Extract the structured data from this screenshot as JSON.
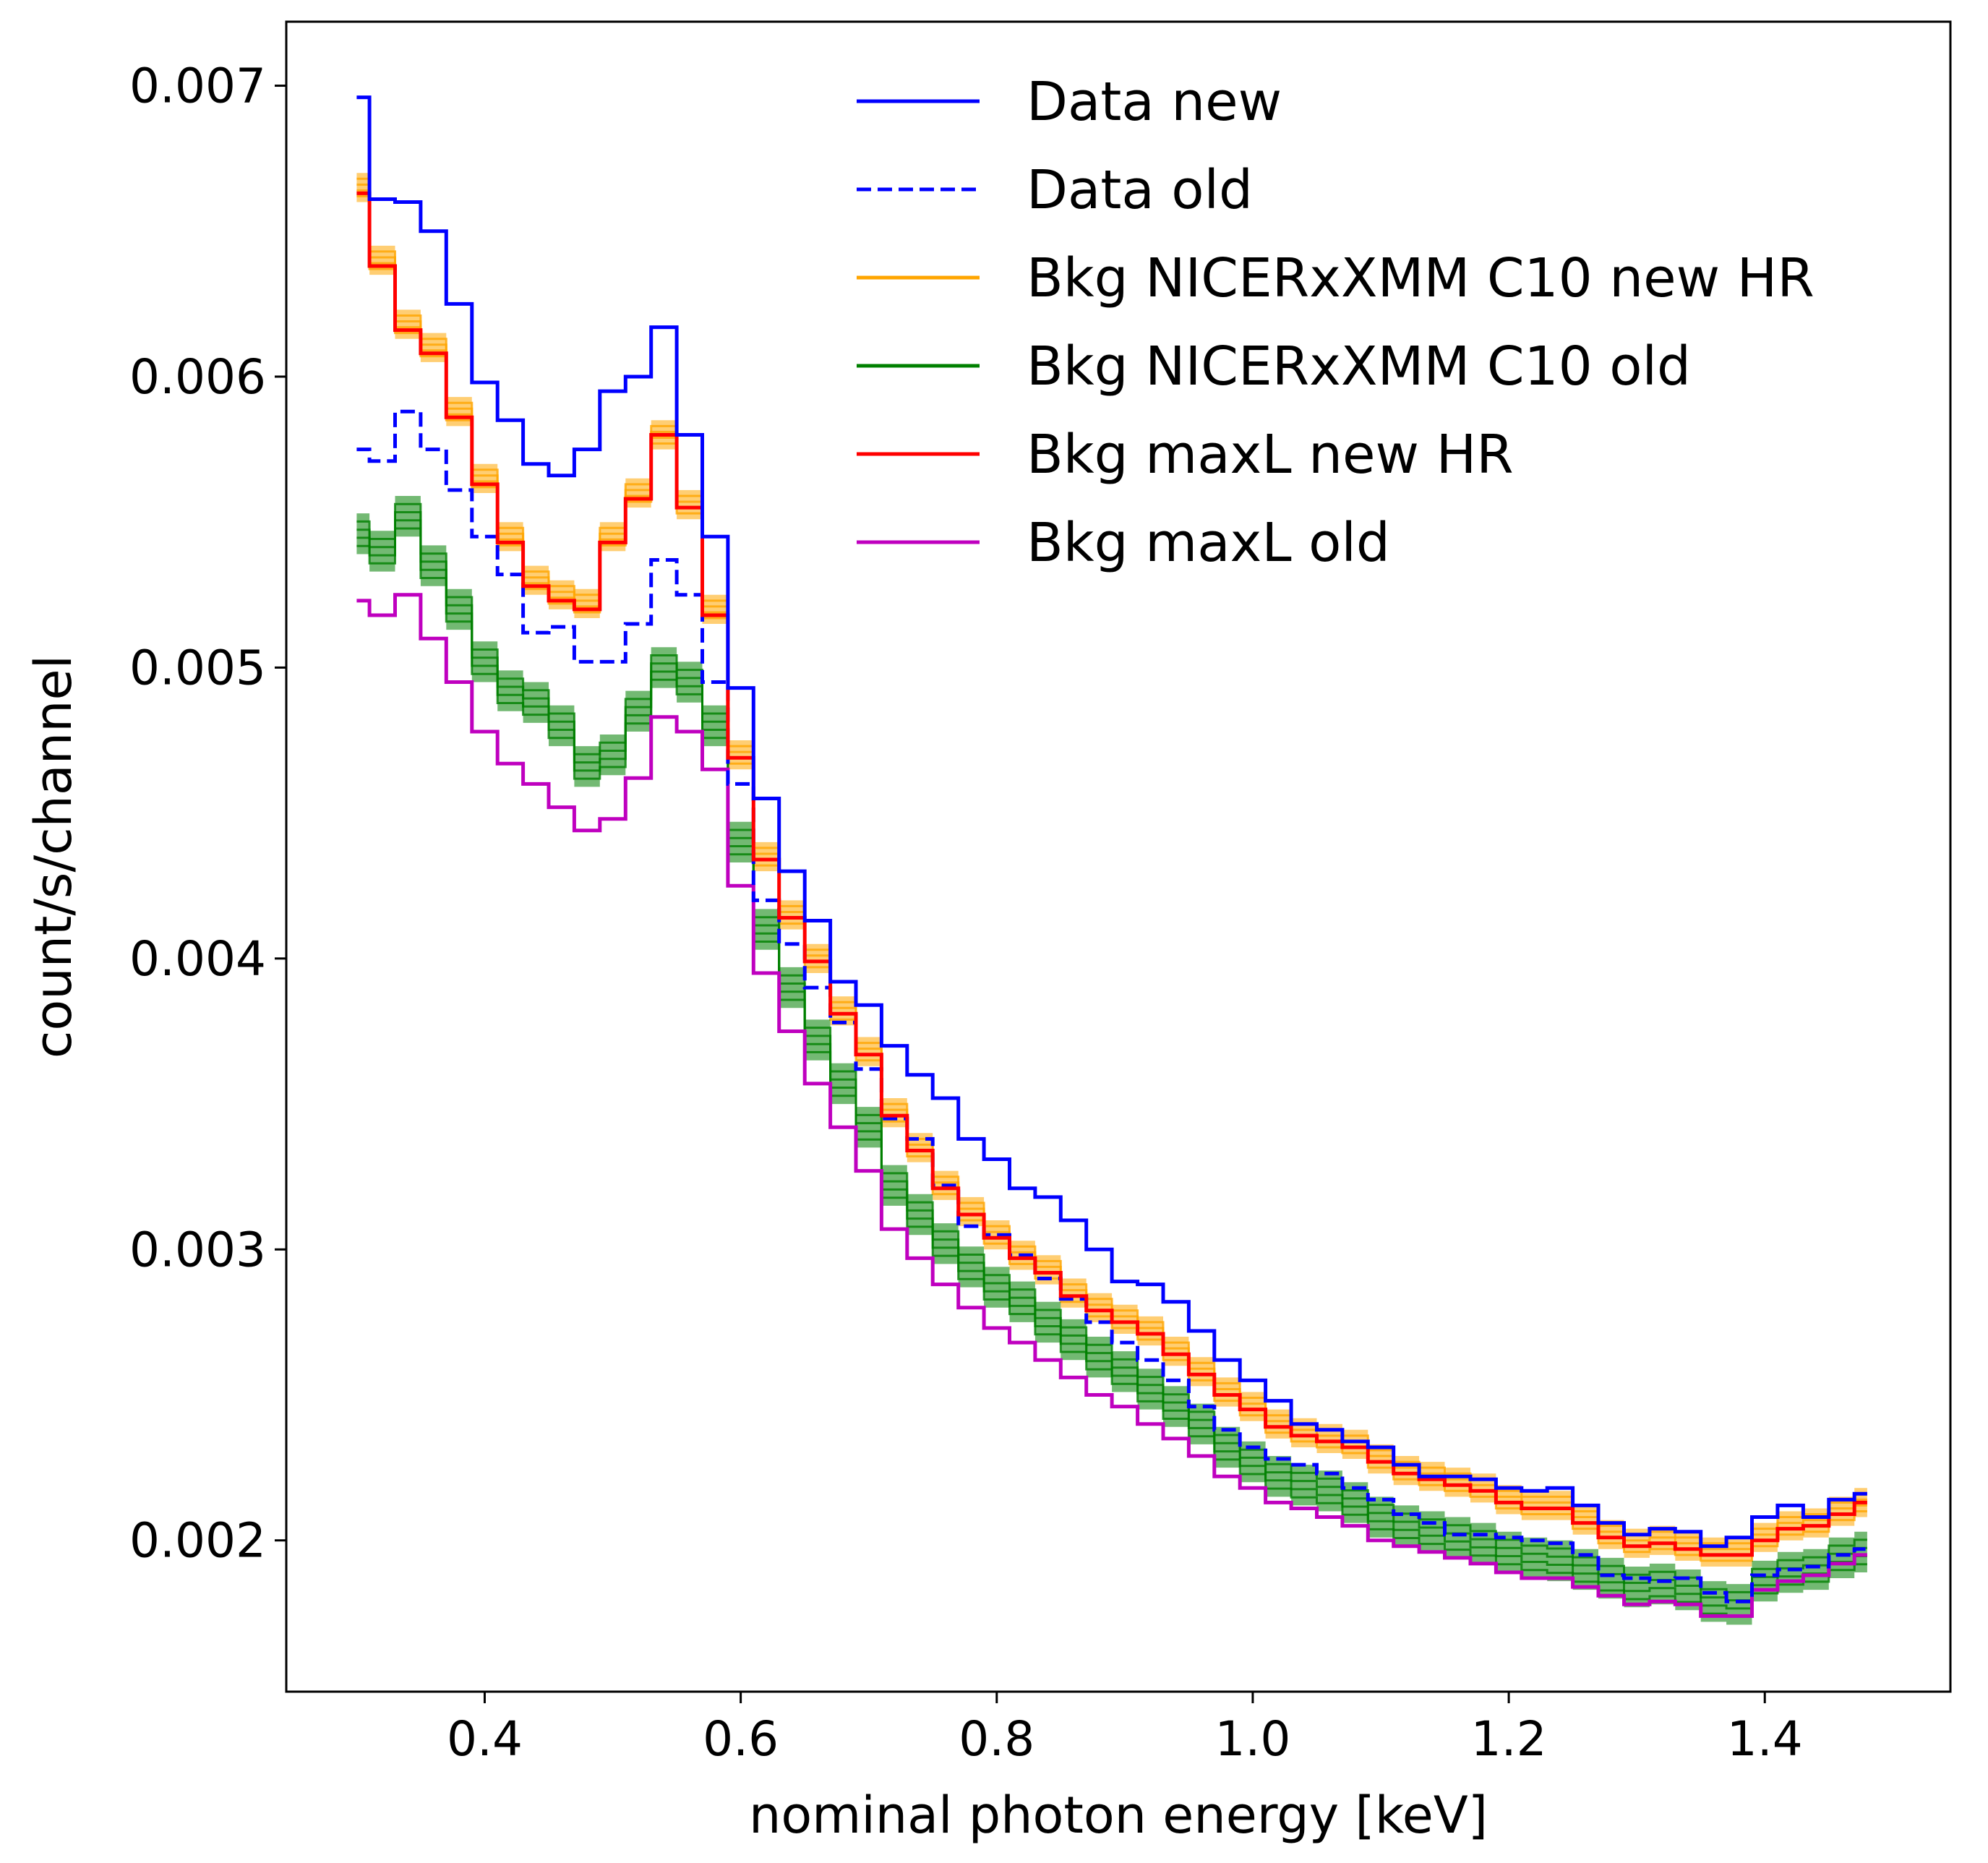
{
  "chart_data": {
    "type": "line",
    "xlabel": "nominal photon energy [keV]",
    "ylabel": "count/s/channel",
    "xlim": [
      0.245,
      1.545
    ],
    "ylim": [
      0.00148,
      0.00722
    ],
    "xticks": [
      0.4,
      0.6,
      0.8,
      1.0,
      1.2,
      1.4
    ],
    "xtick_labels": [
      "0.4",
      "0.6",
      "0.8",
      "1.0",
      "1.2",
      "1.4"
    ],
    "yticks": [
      0.002,
      0.003,
      0.004,
      0.005,
      0.006,
      0.007
    ],
    "ytick_labels": [
      "0.002",
      "0.003",
      "0.004",
      "0.005",
      "0.006",
      "0.007"
    ],
    "legend_position": "top-right",
    "x": [
      0.3,
      0.32,
      0.34,
      0.36,
      0.38,
      0.4,
      0.42,
      0.44,
      0.46,
      0.48,
      0.5,
      0.52,
      0.54,
      0.56,
      0.58,
      0.6,
      0.62,
      0.64,
      0.66,
      0.68,
      0.7,
      0.72,
      0.74,
      0.76,
      0.78,
      0.8,
      0.82,
      0.84,
      0.86,
      0.88,
      0.9,
      0.92,
      0.94,
      0.96,
      0.98,
      1.0,
      1.02,
      1.04,
      1.06,
      1.08,
      1.1,
      1.12,
      1.14,
      1.16,
      1.18,
      1.2,
      1.22,
      1.24,
      1.26,
      1.28,
      1.3,
      1.32,
      1.34,
      1.36,
      1.38,
      1.4,
      1.42,
      1.44,
      1.46,
      1.48
    ],
    "series": [
      {
        "name": "Data new",
        "color": "#0000ff",
        "style": "solid",
        "band": false,
        "values": [
          0.00696,
          0.00661,
          0.0066,
          0.0065,
          0.00625,
          0.00598,
          0.00585,
          0.0057,
          0.00566,
          0.00575,
          0.00595,
          0.006,
          0.00617,
          0.0058,
          0.00545,
          0.00493,
          0.00455,
          0.0043,
          0.00413,
          0.00392,
          0.00384,
          0.0037,
          0.0036,
          0.00352,
          0.00338,
          0.00331,
          0.00321,
          0.00318,
          0.0031,
          0.003,
          0.00289,
          0.00288,
          0.00282,
          0.00272,
          0.00262,
          0.00255,
          0.00248,
          0.0024,
          0.00238,
          0.00234,
          0.00232,
          0.00226,
          0.00222,
          0.00222,
          0.00221,
          0.00218,
          0.00217,
          0.00218,
          0.00212,
          0.00206,
          0.00202,
          0.00204,
          0.00203,
          0.00198,
          0.00201,
          0.00208,
          0.00212,
          0.00208,
          0.00214,
          0.00216
        ]
      },
      {
        "name": "Data old",
        "color": "#0000ff",
        "style": "dashed",
        "band": false,
        "values": [
          0.00575,
          0.00571,
          0.00588,
          0.00575,
          0.00561,
          0.00545,
          0.00532,
          0.00512,
          0.00514,
          0.00502,
          0.00502,
          0.00515,
          0.00537,
          0.00525,
          0.00495,
          0.0046,
          0.0042,
          0.00405,
          0.0039,
          0.00378,
          0.00362,
          0.00345,
          0.00338,
          0.00322,
          0.00308,
          0.00305,
          0.00298,
          0.0029,
          0.00283,
          0.00275,
          0.00268,
          0.00262,
          0.00255,
          0.00246,
          0.00238,
          0.00232,
          0.00228,
          0.00226,
          0.00223,
          0.00218,
          0.00214,
          0.00209,
          0.00206,
          0.00202,
          0.00202,
          0.00201,
          0.002,
          0.00199,
          0.00195,
          0.00188,
          0.00187,
          0.00186,
          0.00187,
          0.00182,
          0.00179,
          0.00188,
          0.0019,
          0.00191,
          0.00195,
          0.00197
        ]
      },
      {
        "name": "Bkg NICERxXMM C10 new HR",
        "color": "#ffa500",
        "style": "solid",
        "band": true,
        "values": [
          0.00665,
          0.0064,
          0.00618,
          0.0061,
          0.00588,
          0.00565,
          0.00545,
          0.0053,
          0.00525,
          0.00522,
          0.00545,
          0.0056,
          0.0058,
          0.00556,
          0.0052,
          0.0047,
          0.00435,
          0.00415,
          0.004,
          0.00382,
          0.00368,
          0.00347,
          0.00335,
          0.00322,
          0.00313,
          0.00305,
          0.00298,
          0.00293,
          0.00285,
          0.0028,
          0.00276,
          0.00272,
          0.00265,
          0.00258,
          0.00251,
          0.00246,
          0.0024,
          0.00237,
          0.00235,
          0.00233,
          0.00228,
          0.00224,
          0.00222,
          0.0022,
          0.00218,
          0.00214,
          0.00212,
          0.00212,
          0.00207,
          0.00202,
          0.00199,
          0.002,
          0.00198,
          0.00196,
          0.00196,
          0.00201,
          0.00205,
          0.00206,
          0.0021,
          0.00213
        ],
        "band_width": 5e-05
      },
      {
        "name": "Bkg NICERxXMM C10 old",
        "color": "#008000",
        "style": "solid",
        "band": true,
        "values": [
          0.00546,
          0.0054,
          0.00552,
          0.00535,
          0.0052,
          0.00502,
          0.00492,
          0.00488,
          0.0048,
          0.00466,
          0.0047,
          0.00485,
          0.005,
          0.00495,
          0.0048,
          0.0044,
          0.0041,
          0.0039,
          0.00372,
          0.00357,
          0.00342,
          0.00322,
          0.00312,
          0.00302,
          0.00294,
          0.00287,
          0.00282,
          0.00275,
          0.00269,
          0.00263,
          0.00258,
          0.00252,
          0.00246,
          0.0024,
          0.00232,
          0.00227,
          0.00222,
          0.00219,
          0.00217,
          0.00213,
          0.00208,
          0.00205,
          0.00203,
          0.00201,
          0.00199,
          0.00196,
          0.00194,
          0.00193,
          0.0019,
          0.00187,
          0.00184,
          0.00185,
          0.00183,
          0.00179,
          0.00178,
          0.00186,
          0.00189,
          0.0019,
          0.00194,
          0.00196
        ],
        "band_width": 7e-05
      },
      {
        "name": "Bkg maxL new HR",
        "color": "#ff0000",
        "style": "solid",
        "band": false,
        "values": [
          0.00663,
          0.00638,
          0.00616,
          0.00608,
          0.00586,
          0.00563,
          0.00543,
          0.00528,
          0.00523,
          0.0052,
          0.00543,
          0.00558,
          0.0058,
          0.00555,
          0.00518,
          0.00469,
          0.00434,
          0.00414,
          0.00399,
          0.00381,
          0.00367,
          0.00346,
          0.00334,
          0.00321,
          0.00312,
          0.00304,
          0.00297,
          0.00292,
          0.00284,
          0.00279,
          0.00275,
          0.00271,
          0.00264,
          0.00257,
          0.0025,
          0.00245,
          0.00239,
          0.00236,
          0.00234,
          0.00232,
          0.00227,
          0.00223,
          0.00221,
          0.00219,
          0.00217,
          0.00213,
          0.00211,
          0.00211,
          0.00206,
          0.00201,
          0.00198,
          0.00199,
          0.00197,
          0.00195,
          0.00195,
          0.002,
          0.00204,
          0.00205,
          0.00209,
          0.00213
        ]
      },
      {
        "name": "Bkg maxL old",
        "color": "#bf00bf",
        "style": "solid",
        "band": false,
        "values": [
          0.00523,
          0.00518,
          0.00525,
          0.0051,
          0.00495,
          0.00478,
          0.00467,
          0.0046,
          0.00452,
          0.00444,
          0.00448,
          0.00462,
          0.00483,
          0.00478,
          0.00465,
          0.00425,
          0.00395,
          0.00375,
          0.00357,
          0.00342,
          0.00327,
          0.00307,
          0.00297,
          0.00288,
          0.0028,
          0.00273,
          0.00268,
          0.00262,
          0.00256,
          0.0025,
          0.00246,
          0.0024,
          0.00235,
          0.00229,
          0.00222,
          0.00218,
          0.00213,
          0.00211,
          0.00208,
          0.00205,
          0.002,
          0.00198,
          0.00196,
          0.00194,
          0.00192,
          0.00189,
          0.00187,
          0.00187,
          0.00184,
          0.00181,
          0.00178,
          0.00179,
          0.00178,
          0.00174,
          0.00174,
          0.00183,
          0.00186,
          0.00188,
          0.00192,
          0.00195
        ]
      }
    ]
  }
}
